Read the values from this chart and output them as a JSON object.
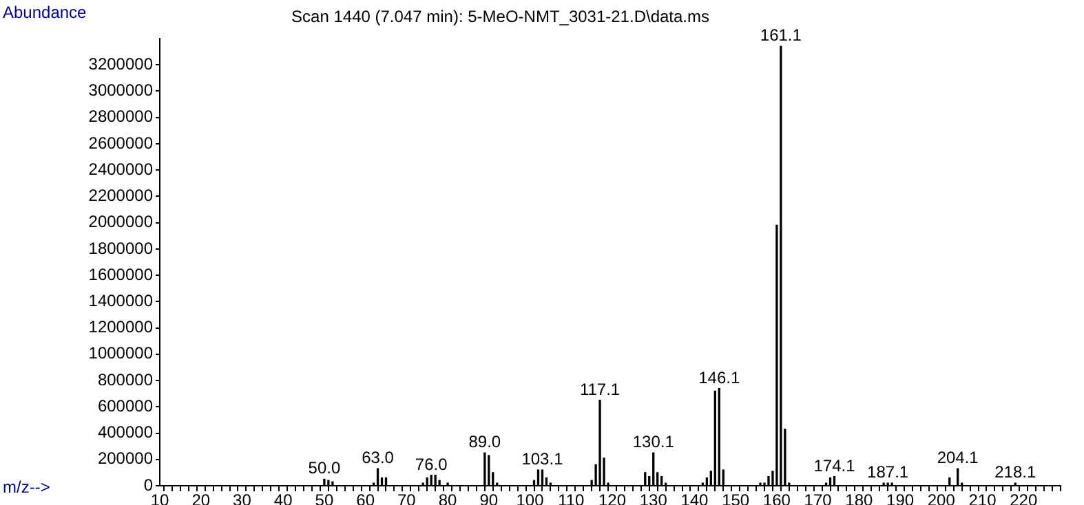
{
  "chart_data": {
    "type": "bar",
    "title": "Scan 1440 (7.047 min): 5-MeO-NMT_3031-21.D\\data.ms",
    "xlabel": "m/z-->",
    "ylabel": "Abundance",
    "x": [
      50,
      51,
      52,
      62,
      63,
      64,
      65,
      74,
      75,
      76,
      77,
      78,
      80,
      89,
      90,
      91,
      92,
      101,
      102,
      103,
      104,
      105,
      115,
      116,
      117,
      118,
      119,
      128,
      129,
      130,
      131,
      132,
      133,
      142,
      143,
      144,
      145,
      146,
      147,
      156,
      157,
      158,
      159,
      160,
      161,
      162,
      163,
      172,
      173,
      174,
      186,
      187,
      188,
      202,
      204,
      205,
      218
    ],
    "values": [
      50000,
      40000,
      30000,
      20000,
      130000,
      60000,
      60000,
      20000,
      60000,
      80000,
      80000,
      40000,
      20000,
      250000,
      230000,
      100000,
      20000,
      40000,
      120000,
      120000,
      60000,
      20000,
      40000,
      160000,
      650000,
      210000,
      20000,
      100000,
      70000,
      250000,
      100000,
      70000,
      20000,
      20000,
      60000,
      110000,
      720000,
      740000,
      120000,
      20000,
      20000,
      70000,
      110000,
      1980000,
      3340000,
      430000,
      20000,
      20000,
      60000,
      70000,
      20000,
      20000,
      20000,
      60000,
      130000,
      20000,
      20000
    ],
    "color": "#000000",
    "xlim": [
      10,
      229
    ],
    "ylim": [
      0,
      3400000
    ],
    "xticks": [
      10,
      {
        "value": 12,
        "label": null
      },
      {
        "value": 14,
        "label": null
      },
      {
        "value": 16,
        "label": null
      },
      {
        "value": 18,
        "label": null
      },
      20,
      {
        "value": 22,
        "label": null
      },
      {
        "value": 24,
        "label": null
      },
      {
        "value": 26,
        "label": null
      },
      {
        "value": 28,
        "label": null
      },
      30,
      {
        "value": 32,
        "label": null
      },
      {
        "value": 34,
        "label": null
      },
      {
        "value": 36,
        "label": null
      },
      {
        "value": 38,
        "label": null
      },
      40,
      {
        "value": 42,
        "label": null
      },
      {
        "value": 44,
        "label": null
      },
      {
        "value": 46,
        "label": null
      },
      {
        "value": 48,
        "label": null
      },
      50,
      {
        "value": 52,
        "label": null
      },
      {
        "value": 54,
        "label": null
      },
      {
        "value": 56,
        "label": null
      },
      {
        "value": 58,
        "label": null
      },
      60,
      {
        "value": 62,
        "label": null
      },
      {
        "value": 64,
        "label": null
      },
      {
        "value": 66,
        "label": null
      },
      {
        "value": 68,
        "label": null
      },
      70,
      {
        "value": 72,
        "label": null
      },
      {
        "value": 74,
        "label": null
      },
      {
        "value": 76,
        "label": null
      },
      {
        "value": 78,
        "label": null
      },
      80,
      {
        "value": 82,
        "label": null
      },
      {
        "value": 84,
        "label": null
      },
      {
        "value": 86,
        "label": null
      },
      {
        "value": 88,
        "label": null
      },
      90,
      {
        "value": 92,
        "label": null
      },
      {
        "value": 94,
        "label": null
      },
      {
        "value": 96,
        "label": null
      },
      {
        "value": 98,
        "label": null
      },
      100,
      {
        "value": 102,
        "label": null
      },
      {
        "value": 104,
        "label": null
      },
      {
        "value": 106,
        "label": null
      },
      {
        "value": 108,
        "label": null
      },
      110,
      {
        "value": 112,
        "label": null
      },
      {
        "value": 114,
        "label": null
      },
      {
        "value": 116,
        "label": null
      },
      {
        "value": 118,
        "label": null
      },
      120,
      {
        "value": 122,
        "label": null
      },
      {
        "value": 124,
        "label": null
      },
      {
        "value": 126,
        "label": null
      },
      {
        "value": 128,
        "label": null
      },
      130,
      {
        "value": 132,
        "label": null
      },
      {
        "value": 134,
        "label": null
      },
      {
        "value": 136,
        "label": null
      },
      {
        "value": 138,
        "label": null
      },
      140,
      {
        "value": 142,
        "label": null
      },
      {
        "value": 144,
        "label": null
      },
      {
        "value": 146,
        "label": null
      },
      {
        "value": 148,
        "label": null
      },
      150,
      {
        "value": 152,
        "label": null
      },
      {
        "value": 154,
        "label": null
      },
      {
        "value": 156,
        "label": null
      },
      {
        "value": 158,
        "label": null
      },
      160,
      {
        "value": 162,
        "label": null
      },
      {
        "value": 164,
        "label": null
      },
      {
        "value": 166,
        "label": null
      },
      {
        "value": 168,
        "label": null
      },
      170,
      {
        "value": 172,
        "label": null
      },
      {
        "value": 174,
        "label": null
      },
      {
        "value": 176,
        "label": null
      },
      {
        "value": 178,
        "label": null
      },
      180,
      {
        "value": 182,
        "label": null
      },
      {
        "value": 184,
        "label": null
      },
      {
        "value": 186,
        "label": null
      },
      {
        "value": 188,
        "label": null
      },
      190,
      {
        "value": 192,
        "label": null
      },
      {
        "value": 194,
        "label": null
      },
      {
        "value": 196,
        "label": null
      },
      {
        "value": 198,
        "label": null
      },
      200,
      {
        "value": 202,
        "label": null
      },
      {
        "value": 204,
        "label": null
      },
      {
        "value": 206,
        "label": null
      },
      {
        "value": 208,
        "label": null
      },
      210,
      {
        "value": 212,
        "label": null
      },
      {
        "value": 214,
        "label": null
      },
      {
        "value": 216,
        "label": null
      },
      {
        "value": 218,
        "label": null
      },
      220,
      {
        "value": 222,
        "label": null
      },
      {
        "value": 224,
        "label": null
      },
      {
        "value": 226,
        "label": null
      },
      {
        "value": 228,
        "label": null
      }
    ],
    "yticks": [
      0,
      200000,
      400000,
      600000,
      800000,
      1000000,
      1200000,
      1400000,
      1600000,
      1800000,
      2000000,
      2200000,
      2400000,
      2600000,
      2800000,
      3000000,
      3200000
    ],
    "annotations": [
      {
        "text": "50.0",
        "x": 50,
        "y": 50000
      },
      {
        "text": "63.0",
        "x": 63,
        "y": 130000
      },
      {
        "text": "76.0",
        "x": 76,
        "y": 80000
      },
      {
        "text": "89.0",
        "x": 89,
        "y": 250000
      },
      {
        "text": "103.1",
        "x": 103,
        "y": 120000
      },
      {
        "text": "117.1",
        "x": 117,
        "y": 650000
      },
      {
        "text": "130.1",
        "x": 130,
        "y": 250000
      },
      {
        "text": "146.1",
        "x": 146,
        "y": 740000
      },
      {
        "text": "161.1",
        "x": 161,
        "y": 3340000
      },
      {
        "text": "174.1",
        "x": 174,
        "y": 70000
      },
      {
        "text": "187.1",
        "x": 187,
        "y": 20000
      },
      {
        "text": "204.1",
        "x": 204,
        "y": 130000
      },
      {
        "text": "218.1",
        "x": 218,
        "y": 20000
      }
    ]
  }
}
